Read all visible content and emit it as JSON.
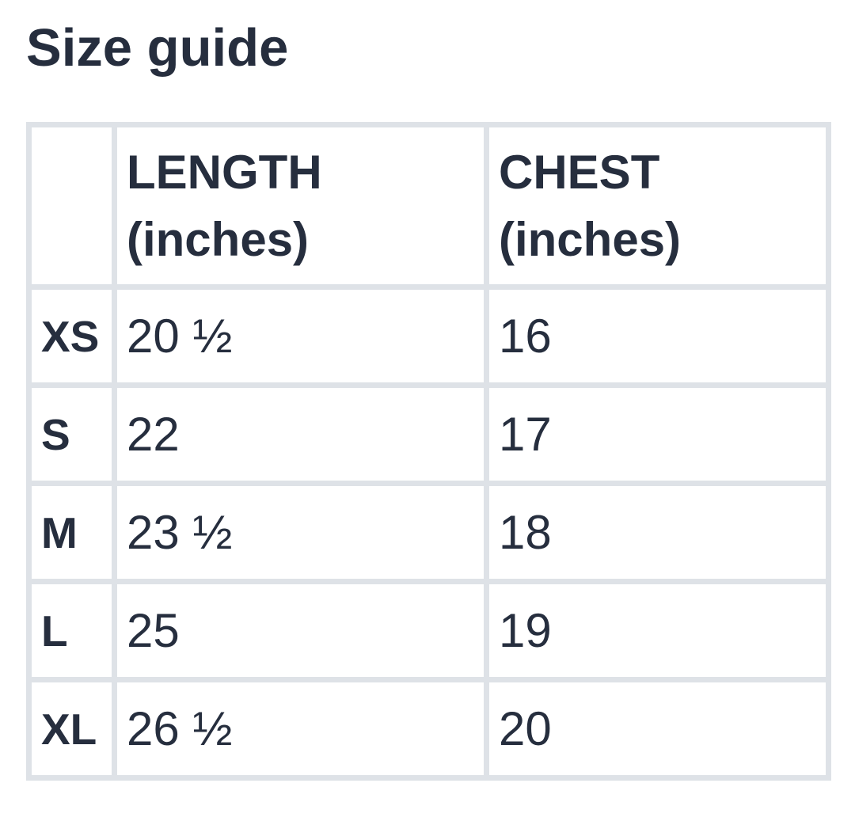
{
  "title": "Size guide",
  "table": {
    "corner_label": "",
    "columns": [
      {
        "name": "LENGTH",
        "unit": "(inches)"
      },
      {
        "name": "CHEST",
        "unit": "(inches)"
      }
    ],
    "rows": [
      {
        "size": "XS",
        "length": "20 ½",
        "chest": "16"
      },
      {
        "size": "S",
        "length": "22",
        "chest": "17"
      },
      {
        "size": "M",
        "length": "23 ½",
        "chest": "18"
      },
      {
        "size": "L",
        "length": "25",
        "chest": "19"
      },
      {
        "size": "XL",
        "length": "26 ½",
        "chest": "20"
      }
    ]
  },
  "colors": {
    "text": "#262e3e",
    "grid": "#dee2e7",
    "background": "#ffffff"
  }
}
